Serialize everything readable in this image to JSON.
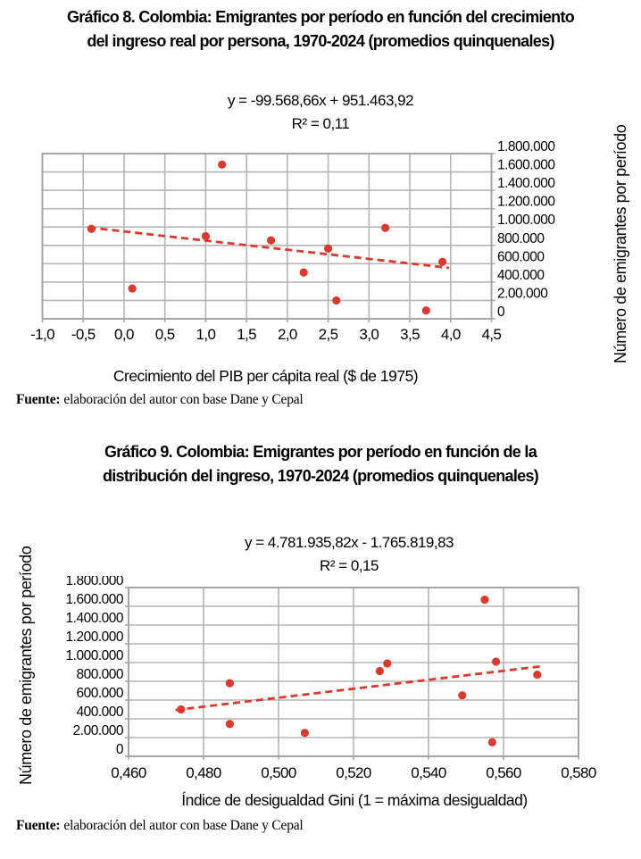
{
  "colors": {
    "point_red": "#d9392f",
    "grid": "#b5b5b5",
    "plot_border": "#a6a6a6",
    "text": "#000000",
    "background": "#ffffff"
  },
  "chart_data": [
    {
      "type": "scatter",
      "title_lines": [
        "Gráfico 8. Colombia: Emigrantes por período en función del crecimiento",
        "del ingreso real por persona, 1970-2024 (promedios quinquenales)"
      ],
      "equation": "y = -99.568,66x + 951.463,92",
      "r_squared": "R² = 0,11",
      "xlabel": "Crecimiento del PIB per cápita real ($ de 1975)",
      "ylabel": "Número de emigrantes por período",
      "xlim": [
        -1.0,
        4.5
      ],
      "ylim": [
        0,
        1800000
      ],
      "x_ticks": [
        -1.0,
        -0.5,
        0.0,
        0.5,
        1.0,
        1.5,
        2.0,
        2.5,
        3.0,
        3.5,
        4.0,
        4.5
      ],
      "x_tick_labels": [
        "-1,0",
        "-0,5",
        "0,0",
        "0,5",
        "1,0",
        "1,5",
        "2,0",
        "2,5",
        "3,0",
        "3,5",
        "4,0",
        "4,5"
      ],
      "y_ticks": [
        1800000,
        1600000,
        1400000,
        1200000,
        1000000,
        800000,
        600000,
        400000,
        200000,
        0
      ],
      "y_tick_labels": [
        "1.800.000",
        "1.600.000",
        "1.400.000",
        "1.200.000",
        "1.000.000",
        "800.000",
        "600.000",
        "400.000",
        "2.00.000",
        "0"
      ],
      "y_label_side": "right",
      "grid": true,
      "legend": "none",
      "points": [
        {
          "x": -0.4,
          "y": 980000
        },
        {
          "x": 0.1,
          "y": 330000
        },
        {
          "x": 1.0,
          "y": 900000
        },
        {
          "x": 1.2,
          "y": 1680000
        },
        {
          "x": 1.8,
          "y": 855000
        },
        {
          "x": 2.2,
          "y": 505000
        },
        {
          "x": 2.5,
          "y": 765000
        },
        {
          "x": 2.6,
          "y": 200000
        },
        {
          "x": 3.2,
          "y": 990000
        },
        {
          "x": 3.7,
          "y": 90000
        },
        {
          "x": 3.9,
          "y": 620000
        }
      ],
      "trendline": {
        "slope": -99568.66,
        "intercept": 951463.92,
        "x_start": -0.43,
        "x_end": 3.98,
        "style": "dashed"
      },
      "source": {
        "label": "Fuente:",
        "text": "elaboración del autor con base Dane y Cepal"
      }
    },
    {
      "type": "scatter",
      "title_lines": [
        "Gráfico 9. Colombia: Emigrantes por período en función de la",
        "distribución del ingreso, 1970-2024 (promedios quinquenales)"
      ],
      "equation": "y = 4.781.935,82x - 1.765.819,83",
      "r_squared": "R² = 0,15",
      "xlabel": "Índice de desigualdad Gini (1 = máxima desigualdad)",
      "ylabel": "Número de emigrantes por período",
      "xlim": [
        0.46,
        0.58
      ],
      "ylim": [
        0,
        1800000
      ],
      "x_ticks": [
        0.46,
        0.48,
        0.5,
        0.52,
        0.54,
        0.56,
        0.58
      ],
      "x_tick_labels": [
        "0,460",
        "0,480",
        "0,500",
        "0,520",
        "0,540",
        "0,560",
        "0,580"
      ],
      "y_ticks": [
        1800000,
        1600000,
        1400000,
        1200000,
        1000000,
        800000,
        600000,
        400000,
        200000,
        0
      ],
      "y_tick_labels": [
        "1.800.000",
        "1.600.000",
        "1.400.000",
        "1.200.000",
        "1.000.000",
        "800.000",
        "600.000",
        "400.000",
        "2.00.000",
        "0"
      ],
      "y_label_side": "left",
      "grid": true,
      "legend": "none",
      "points": [
        {
          "x": 0.474,
          "y": 500000
        },
        {
          "x": 0.487,
          "y": 780000
        },
        {
          "x": 0.487,
          "y": 345000
        },
        {
          "x": 0.507,
          "y": 250000
        },
        {
          "x": 0.527,
          "y": 910000
        },
        {
          "x": 0.529,
          "y": 990000
        },
        {
          "x": 0.549,
          "y": 650000
        },
        {
          "x": 0.555,
          "y": 1670000
        },
        {
          "x": 0.558,
          "y": 1010000
        },
        {
          "x": 0.557,
          "y": 150000
        },
        {
          "x": 0.569,
          "y": 870000
        }
      ],
      "trendline": {
        "slope": 4781935.82,
        "intercept": -1765819.83,
        "x_start": 0.4725,
        "x_end": 0.5705,
        "style": "dashed"
      },
      "source": {
        "label": "Fuente:",
        "text": "elaboración del autor con base Dane y Cepal"
      }
    }
  ]
}
